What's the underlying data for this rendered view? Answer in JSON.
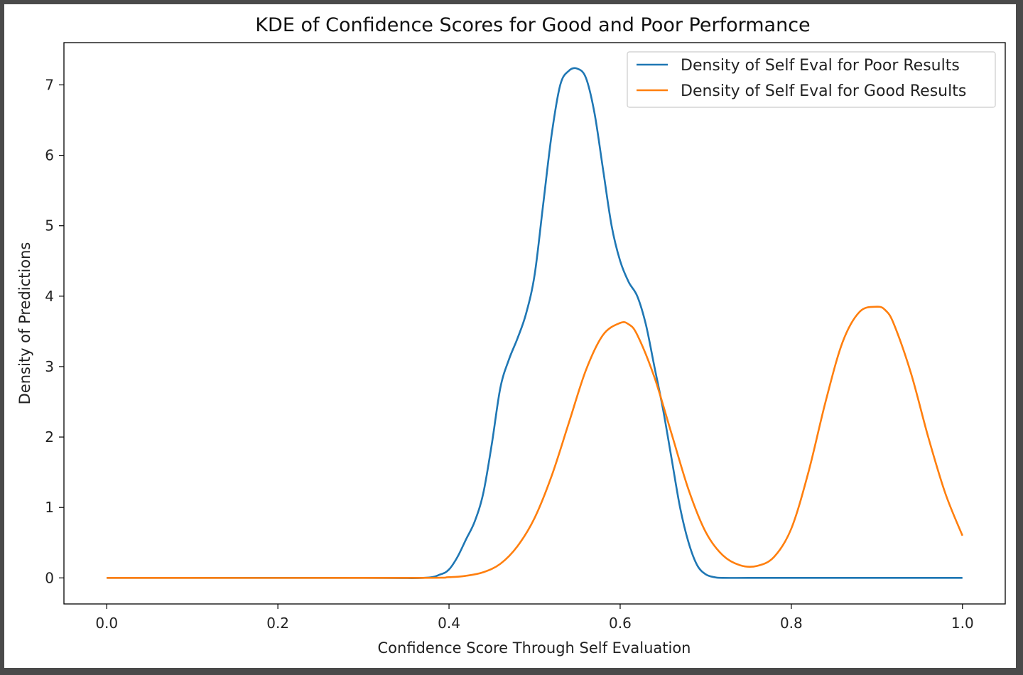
{
  "chart_data": {
    "type": "line",
    "title": "KDE of Confidence Scores for Good and Poor Performance",
    "xlabel": "Confidence Score Through Self Evaluation",
    "ylabel": "Density of Predictions",
    "xlim": [
      -0.05,
      1.05
    ],
    "ylim": [
      -0.37,
      7.6
    ],
    "xticks": [
      0.0,
      0.2,
      0.4,
      0.6,
      0.8,
      1.0
    ],
    "xtick_labels": [
      "0.0",
      "0.2",
      "0.4",
      "0.6",
      "0.8",
      "1.0"
    ],
    "yticks": [
      0,
      1,
      2,
      3,
      4,
      5,
      6,
      7
    ],
    "ytick_labels": [
      "0",
      "1",
      "2",
      "3",
      "4",
      "5",
      "6",
      "7"
    ],
    "grid": false,
    "legend_position": "top-right",
    "series": [
      {
        "name": "Density of Self Eval for Poor Results",
        "color": "#1f77b4",
        "x": [
          0.0,
          0.3,
          0.37,
          0.39,
          0.4,
          0.41,
          0.42,
          0.43,
          0.44,
          0.45,
          0.46,
          0.47,
          0.48,
          0.49,
          0.5,
          0.51,
          0.52,
          0.53,
          0.54,
          0.55,
          0.56,
          0.57,
          0.58,
          0.59,
          0.6,
          0.61,
          0.62,
          0.63,
          0.64,
          0.65,
          0.66,
          0.67,
          0.68,
          0.69,
          0.7,
          0.71,
          0.72,
          0.75,
          0.8,
          1.0
        ],
        "y": [
          0.0,
          0.0,
          0.0,
          0.05,
          0.12,
          0.3,
          0.55,
          0.8,
          1.2,
          1.9,
          2.7,
          3.1,
          3.4,
          3.75,
          4.3,
          5.3,
          6.3,
          7.0,
          7.2,
          7.23,
          7.1,
          6.6,
          5.8,
          5.0,
          4.5,
          4.2,
          4.0,
          3.6,
          3.0,
          2.4,
          1.7,
          1.0,
          0.5,
          0.18,
          0.05,
          0.01,
          0.0,
          0.0,
          0.0,
          0.0
        ]
      },
      {
        "name": "Density of Self Eval for Good Results",
        "color": "#ff7f0e",
        "x": [
          0.0,
          0.35,
          0.4,
          0.42,
          0.44,
          0.46,
          0.48,
          0.5,
          0.52,
          0.54,
          0.56,
          0.58,
          0.6,
          0.61,
          0.62,
          0.64,
          0.66,
          0.68,
          0.7,
          0.72,
          0.74,
          0.76,
          0.78,
          0.8,
          0.82,
          0.84,
          0.86,
          0.88,
          0.9,
          0.91,
          0.92,
          0.94,
          0.96,
          0.98,
          1.0
        ],
        "y": [
          0.0,
          0.0,
          0.01,
          0.03,
          0.08,
          0.2,
          0.45,
          0.85,
          1.45,
          2.2,
          2.95,
          3.45,
          3.62,
          3.6,
          3.45,
          2.85,
          2.05,
          1.25,
          0.65,
          0.32,
          0.18,
          0.17,
          0.3,
          0.7,
          1.5,
          2.5,
          3.35,
          3.78,
          3.85,
          3.8,
          3.6,
          2.9,
          2.0,
          1.2,
          0.6
        ]
      }
    ]
  }
}
